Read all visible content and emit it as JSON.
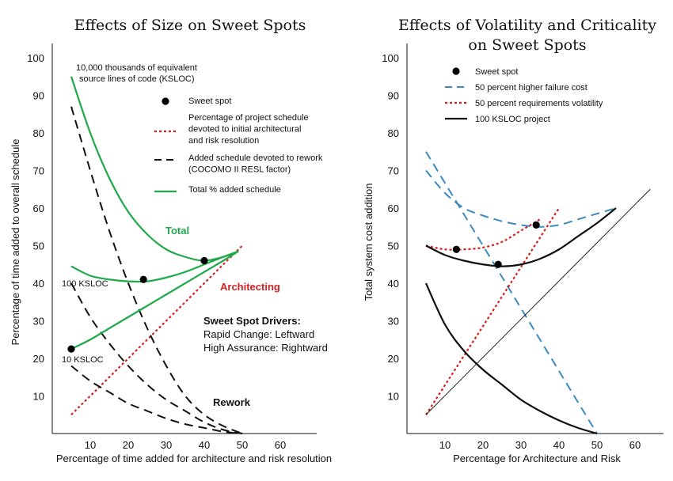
{
  "chart_data": [
    {
      "type": "line",
      "title": "Effects of Size on Sweet Spots",
      "xlabel": "Percentage of time added for architecture and risk resolution",
      "ylabel": "Percentage of time added to overall schedule",
      "xlim": [
        0,
        68
      ],
      "ylim": [
        0,
        100
      ],
      "xticks": [
        10,
        20,
        30,
        40,
        50,
        60
      ],
      "yticks": [
        10,
        20,
        30,
        40,
        50,
        60,
        70,
        80,
        90,
        100
      ],
      "grid": false,
      "series": [
        {
          "name": "Percentage of project schedule devoted to initial architectural and risk resolution",
          "style": "red-dotted",
          "color": "#d42020",
          "points": [
            [
              5,
              5
            ],
            [
              50,
              50
            ]
          ]
        },
        {
          "name": "Added schedule devoted to rework (COCOMO II RESL factor)",
          "style": "black-dashed",
          "color": "#111111",
          "group": "10,000 KSLOC",
          "points": [
            [
              5,
              87
            ],
            [
              10,
              70
            ],
            [
              15,
              54
            ],
            [
              20,
              40
            ],
            [
              25,
              28
            ],
            [
              30,
              18
            ],
            [
              35,
              10
            ],
            [
              40,
              5
            ],
            [
              45,
              2
            ],
            [
              50,
              0
            ]
          ]
        },
        {
          "name": "Added schedule devoted to rework (COCOMO II RESL factor)",
          "style": "black-dashed",
          "color": "#111111",
          "group": "100 KSLOC",
          "points": [
            [
              5,
              40
            ],
            [
              10,
              31
            ],
            [
              15,
              24
            ],
            [
              20,
              18
            ],
            [
              25,
              13
            ],
            [
              30,
              9
            ],
            [
              35,
              6
            ],
            [
              40,
              3
            ],
            [
              45,
              1
            ],
            [
              50,
              0
            ]
          ]
        },
        {
          "name": "Added schedule devoted to rework (COCOMO II RESL factor)",
          "style": "black-dashed",
          "color": "#111111",
          "group": "10 KSLOC",
          "points": [
            [
              5,
              18
            ],
            [
              10,
              14
            ],
            [
              15,
              11
            ],
            [
              20,
              8
            ],
            [
              25,
              6
            ],
            [
              30,
              4
            ],
            [
              35,
              2.5
            ],
            [
              40,
              1.5
            ],
            [
              45,
              0.5
            ],
            [
              50,
              0
            ]
          ]
        },
        {
          "name": "Total % added schedule",
          "style": "green-solid",
          "color": "#1faa4a",
          "group": "10,000 KSLOC",
          "points": [
            [
              5,
              95
            ],
            [
              10,
              80
            ],
            [
              15,
              68
            ],
            [
              20,
              59
            ],
            [
              25,
              53
            ],
            [
              30,
              49
            ],
            [
              35,
              47
            ],
            [
              40,
              46
            ],
            [
              45,
              47
            ],
            [
              49,
              48.5
            ]
          ]
        },
        {
          "name": "Total % added schedule",
          "style": "green-solid",
          "color": "#1faa4a",
          "group": "100 KSLOC",
          "points": [
            [
              5,
              44.5
            ],
            [
              10,
              42
            ],
            [
              15,
              41
            ],
            [
              20,
              40.5
            ],
            [
              25,
              40.5
            ],
            [
              30,
              41.5
            ],
            [
              35,
              43
            ],
            [
              40,
              45
            ],
            [
              45,
              47
            ],
            [
              49,
              48.5
            ]
          ]
        },
        {
          "name": "Total % added schedule",
          "style": "green-solid",
          "color": "#1faa4a",
          "group": "10 KSLOC",
          "points": [
            [
              5,
              22.5
            ],
            [
              10,
              25
            ],
            [
              15,
              28
            ],
            [
              20,
              31
            ],
            [
              25,
              34
            ],
            [
              30,
              37
            ],
            [
              35,
              40
            ],
            [
              40,
              43
            ],
            [
              45,
              46
            ],
            [
              49,
              48.5
            ]
          ]
        }
      ],
      "sweet_spots": [
        [
          40,
          46
        ],
        [
          24,
          41
        ],
        [
          5,
          22.5
        ]
      ],
      "legend": [
        {
          "label": "Sweet spot",
          "kind": "dot",
          "lines": [
            "Sweet spot"
          ]
        },
        {
          "label": "Percentage of project schedule devoted to initial architectural and risk resolution",
          "kind": "red-dotted",
          "lines": [
            "Percentage of project schedule",
            "devoted to initial architectural",
            "and risk resolution"
          ]
        },
        {
          "label": "Added schedule devoted to rework (COCOMO II RESL factor)",
          "kind": "black-dashed",
          "lines": [
            "Added schedule devoted to rework",
            "(COCOMO II RESL factor)"
          ]
        },
        {
          "label": "Total % added schedule",
          "kind": "green-solid",
          "lines": [
            "Total % added schedule"
          ]
        }
      ],
      "annotations": {
        "size_note": [
          "10,000 thousands of equivalent",
          "source lines of code (KSLOC)"
        ],
        "label_100": "100 KSLOC",
        "label_10": "10 KSLOC",
        "total": "Total",
        "architecting": "Architecting",
        "rework": "Rework",
        "drivers_title": "Sweet Spot Drivers:",
        "drivers_line1": "Rapid Change: Leftward",
        "drivers_line2": "High Assurance: Rightward"
      }
    },
    {
      "type": "line",
      "title": "Effects of Volatility and Criticality",
      "subtitle": "on Sweet Spots",
      "xlabel": "Percentage for Architecture and Risk",
      "ylabel": "Total system cost addition",
      "xlim": [
        0,
        68
      ],
      "ylim": [
        0,
        100
      ],
      "xticks": [
        10,
        20,
        30,
        40,
        50,
        60
      ],
      "yticks": [
        10,
        20,
        30,
        40,
        50,
        60,
        70,
        80,
        90,
        100
      ],
      "grid": false,
      "series": [
        {
          "name": "50 percent higher failure cost",
          "style": "blue-dashed",
          "color": "#3a8ac0",
          "group": "rework-up",
          "points": [
            [
              5,
              75
            ],
            [
              50,
              0
            ]
          ]
        },
        {
          "name": "50 percent higher failure cost",
          "style": "blue-dashed",
          "color": "#3a8ac0",
          "group": "total",
          "points": [
            [
              5,
              70
            ],
            [
              10,
              64
            ],
            [
              15,
              60
            ],
            [
              20,
              58
            ],
            [
              25,
              56.5
            ],
            [
              30,
              55.5
            ],
            [
              35,
              55
            ],
            [
              40,
              55.5
            ],
            [
              45,
              57
            ],
            [
              50,
              58.5
            ],
            [
              55,
              60
            ]
          ]
        },
        {
          "name": "50 percent requirements volatility",
          "style": "red-dotted",
          "color": "#d42020",
          "group": "architecting",
          "points": [
            [
              5,
              5
            ],
            [
              40,
              60
            ]
          ]
        },
        {
          "name": "50 percent requirements volatility",
          "style": "red-dotted",
          "color": "#d42020",
          "group": "total",
          "points": [
            [
              5,
              50
            ],
            [
              10,
              49
            ],
            [
              15,
              49
            ],
            [
              20,
              49.5
            ],
            [
              25,
              51
            ],
            [
              30,
              54
            ],
            [
              35,
              57
            ]
          ]
        },
        {
          "name": "100 KSLOC project",
          "style": "black-solid",
          "color": "#111111",
          "group": "total",
          "points": [
            [
              5,
              50
            ],
            [
              10,
              47.5
            ],
            [
              15,
              46
            ],
            [
              20,
              45
            ],
            [
              25,
              44.5
            ],
            [
              30,
              45
            ],
            [
              35,
              46.5
            ],
            [
              40,
              49
            ],
            [
              45,
              52.5
            ],
            [
              50,
              56
            ],
            [
              55,
              60
            ]
          ]
        },
        {
          "name": "100 KSLOC project",
          "style": "black-thin",
          "color": "#111111",
          "group": "architecting",
          "points": [
            [
              5,
              5
            ],
            [
              64,
              65
            ]
          ]
        },
        {
          "name": "100 KSLOC project",
          "style": "black-solid",
          "color": "#111111",
          "group": "rework",
          "points": [
            [
              5,
              40
            ],
            [
              10,
              29
            ],
            [
              15,
              22
            ],
            [
              20,
              17
            ],
            [
              25,
              13
            ],
            [
              30,
              9
            ],
            [
              35,
              6
            ],
            [
              40,
              3.5
            ],
            [
              45,
              1.5
            ],
            [
              50,
              0
            ]
          ]
        }
      ],
      "sweet_spots": [
        [
          13,
          49
        ],
        [
          24,
          45
        ],
        [
          34,
          55.5
        ]
      ],
      "legend": [
        {
          "label": "Sweet spot",
          "kind": "dot"
        },
        {
          "label": "50 percent higher failure cost",
          "kind": "blue-dashed"
        },
        {
          "label": "50 percent requirements volatility",
          "kind": "red-dotted"
        },
        {
          "label": "100 KSLOC project",
          "kind": "black-solid"
        }
      ]
    }
  ]
}
